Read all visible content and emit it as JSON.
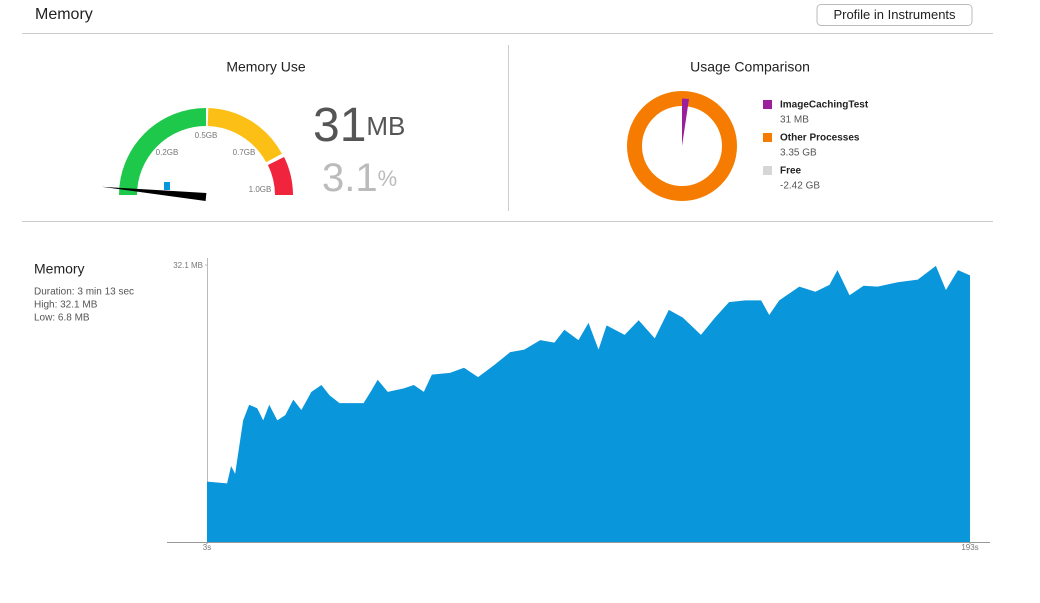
{
  "header": {
    "title": "Memory",
    "button": "Profile in Instruments"
  },
  "gauge": {
    "title": "Memory Use",
    "used": 31,
    "used_unit": "MB",
    "percent": 3.1,
    "percent_unit": "%",
    "tick_labels": [
      "0.2GB",
      "0.5GB",
      "0.7GB",
      "1.0GB"
    ]
  },
  "comparison": {
    "title": "Usage Comparison",
    "items": [
      {
        "name": "ImageCachingTest",
        "value": "31 MB",
        "color": "#9b1f9b"
      },
      {
        "name": "Other Processes",
        "value": "3.35 GB",
        "color": "#f57c00"
      },
      {
        "name": "Free",
        "value": "-2.42 GB",
        "color": "#d6d6d6"
      }
    ]
  },
  "chart_data": {
    "type": "area",
    "title": "Memory",
    "details": [
      "Duration: 3 min 13 sec",
      "High: 32.1 MB",
      "Low: 6.8 MB"
    ],
    "color": "#0a96db",
    "x": [
      3,
      8,
      9,
      10,
      12,
      13.5,
      15.5,
      17,
      18.5,
      20.5,
      22.5,
      24.5,
      26.5,
      29,
      31.5,
      33.5,
      36,
      42,
      44,
      45.5,
      48,
      52,
      54.5,
      57,
      59,
      63.5,
      67,
      70.5,
      74.5,
      78.5,
      82,
      86,
      89.5,
      92,
      95.5,
      98,
      100.5,
      102.5,
      107,
      110.5,
      114.5,
      118,
      121.5,
      126,
      129.5,
      133,
      137,
      141,
      143,
      145.5,
      150.5,
      154.5,
      158,
      160,
      163,
      166.5,
      170,
      175,
      180,
      184.5,
      187,
      190,
      193
    ],
    "values": [
      7.0,
      6.8,
      8.8,
      7.9,
      14.1,
      15.9,
      15.5,
      14.1,
      15.9,
      14.1,
      14.7,
      16.5,
      15.3,
      17.4,
      18.2,
      17.0,
      16.1,
      16.1,
      17.6,
      18.8,
      17.4,
      17.8,
      18.2,
      17.4,
      19.4,
      19.6,
      20.2,
      19.1,
      20.5,
      22.0,
      22.3,
      23.4,
      23.1,
      24.6,
      23.4,
      25.4,
      22.3,
      25.1,
      24.0,
      25.7,
      23.6,
      26.9,
      26.0,
      24.0,
      26.0,
      27.8,
      28.0,
      28.0,
      26.3,
      28.0,
      29.6,
      29.0,
      29.8,
      31.5,
      28.6,
      29.7,
      29.6,
      30.1,
      30.4,
      32.0,
      29.2,
      31.5,
      30.9
    ],
    "xlim": [
      3,
      193
    ],
    "xticks": [
      {
        "value": 3,
        "label": "3s"
      },
      {
        "value": 193,
        "label": "193s"
      }
    ],
    "ylim": [
      0,
      32.1
    ],
    "yticks": [
      {
        "value": 32.1,
        "label": "32.1 MB"
      }
    ]
  }
}
